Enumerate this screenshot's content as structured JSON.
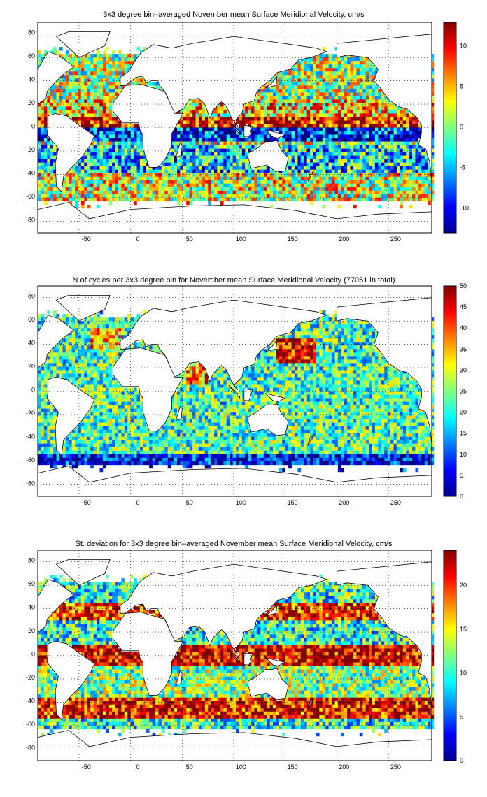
{
  "figure": {
    "panels": [
      {
        "title": "3x3 degree bin–averaged November mean Surface Meridional Velocity, cm/s",
        "xticks": [
          "-50",
          "0",
          "50",
          "100",
          "150",
          "200",
          "250"
        ],
        "yticks": [
          "80",
          "60",
          "40",
          "20",
          "0",
          "-20",
          "-40",
          "-60",
          "-80"
        ],
        "colorbar_ticks": [
          "10",
          "5",
          "0",
          "-5",
          "-10"
        ]
      },
      {
        "title": "N of cycles per 3x3 degree bin for November mean Surface Meridional Velocity (77051 in total)",
        "xticks": [
          "-50",
          "0",
          "50",
          "100",
          "150",
          "200",
          "250"
        ],
        "yticks": [
          "80",
          "60",
          "40",
          "20",
          "0",
          "-20",
          "-40",
          "-60",
          "-80"
        ],
        "colorbar_ticks": [
          "50",
          "45",
          "40",
          "35",
          "30",
          "25",
          "20",
          "15",
          "10",
          "5",
          "0"
        ]
      },
      {
        "title": "St. deviation for 3x3 degree bin–averaged November mean Surface Meridional Velocity, cm/s",
        "xticks": [
          "-50",
          "0",
          "50",
          "100",
          "150",
          "200",
          "250"
        ],
        "yticks": [
          "80",
          "60",
          "40",
          "20",
          "0",
          "-20",
          "-40",
          "-60",
          "-80"
        ],
        "colorbar_ticks": [
          "20",
          "15",
          "10",
          "5",
          "0"
        ]
      }
    ]
  },
  "chart_data": [
    {
      "type": "heatmap",
      "title": "3x3 degree bin–averaged November mean Surface Meridional Velocity, cm/s",
      "xlim": [
        -90,
        292
      ],
      "ylim": [
        -90,
        90
      ],
      "bin_size_deg": 3,
      "xticks": [
        -50,
        0,
        50,
        100,
        150,
        200,
        250
      ],
      "yticks": [
        -80,
        -60,
        -40,
        -20,
        0,
        20,
        40,
        60,
        80
      ],
      "grid": true,
      "colormap": "jet",
      "clim": [
        -13,
        13
      ],
      "colorbar_ticks": [
        -10,
        -5,
        0,
        5,
        10
      ],
      "colorbar": "right",
      "bands": [
        {
          "lat": [
            0,
            10
          ],
          "value": 10
        },
        {
          "lat": [
            -12,
            -2
          ],
          "value": -9
        },
        {
          "lat": [
            10,
            25
          ],
          "value": 4
        },
        {
          "lat": [
            -40,
            -15
          ],
          "value": -4
        }
      ]
    },
    {
      "type": "heatmap",
      "title": "N of cycles per 3x3 degree bin for November mean Surface Meridional Velocity (77051 in total)",
      "xlim": [
        -90,
        292
      ],
      "ylim": [
        -90,
        90
      ],
      "bin_size_deg": 3,
      "xticks": [
        -50,
        0,
        50,
        100,
        150,
        200,
        250
      ],
      "yticks": [
        -80,
        -60,
        -40,
        -20,
        0,
        20,
        40,
        60,
        80
      ],
      "grid": true,
      "colormap": "jet",
      "clim": [
        0,
        50
      ],
      "colorbar_ticks": [
        0,
        5,
        10,
        15,
        20,
        25,
        30,
        35,
        40,
        45,
        50
      ],
      "colorbar": "right",
      "total": 77051,
      "bands": [
        {
          "lat": [
            -70,
            -55
          ],
          "value": 5
        },
        {
          "lat": [
            -55,
            60
          ],
          "value": 22
        },
        {
          "lat": [
            25,
            45
          ],
          "lon": [
            140,
            180
          ],
          "value": 45
        }
      ]
    },
    {
      "type": "heatmap",
      "title": "St. deviation for 3x3 degree bin–averaged November mean Surface Meridional Velocity, cm/s",
      "xlim": [
        -90,
        292
      ],
      "ylim": [
        -90,
        90
      ],
      "bin_size_deg": 3,
      "xticks": [
        -50,
        0,
        50,
        100,
        150,
        200,
        250
      ],
      "yticks": [
        -80,
        -60,
        -40,
        -20,
        0,
        20,
        40,
        60,
        80
      ],
      "grid": true,
      "colormap": "jet",
      "clim": [
        0,
        24
      ],
      "colorbar_ticks": [
        0,
        5,
        10,
        15,
        20
      ],
      "colorbar": "right",
      "bands": [
        {
          "lat": [
            -10,
            10
          ],
          "value": 22
        },
        {
          "lat": [
            -55,
            -35
          ],
          "value": 21
        },
        {
          "lat": [
            30,
            45
          ],
          "value": 20
        },
        {
          "lat": [
            -35,
            -10
          ],
          "value": 12
        }
      ]
    }
  ]
}
